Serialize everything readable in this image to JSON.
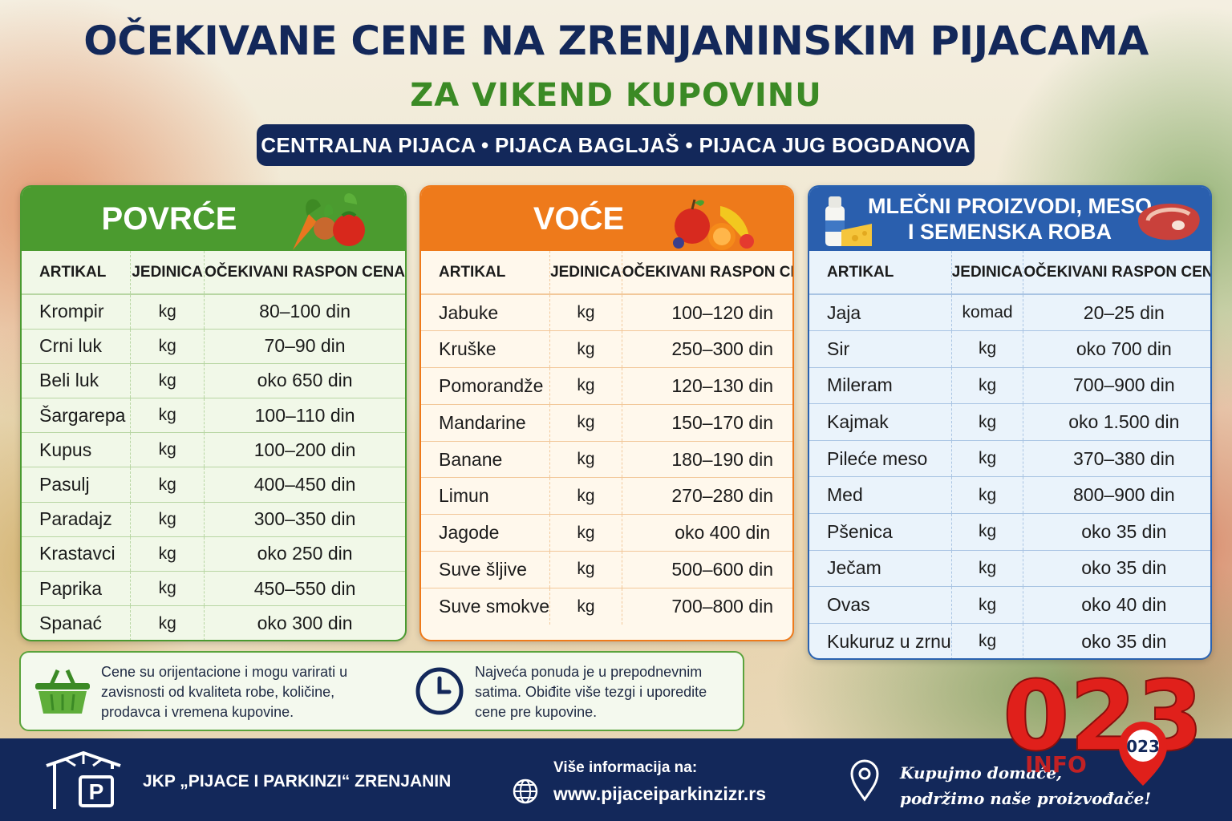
{
  "header": {
    "title": "OČEKIVANE CENE NA ZRENJANINSKIM PIJACAMA",
    "subtitle": "ZA VIKEND KUPOVINU",
    "markets": "CENTRALNA PIJACA • PIJACA BAGLJAŠ • PIJACA JUG BOGDANOVA"
  },
  "columns": {
    "item": "ARTIKAL",
    "unit": "JEDINICA",
    "price": "OČEKIVANI RASPON CENA"
  },
  "vegetables": {
    "title": "POVRĆE",
    "icon": "vegetables-icon",
    "rows": [
      {
        "item": "Krompir",
        "unit": "kg",
        "price": "80–100 din"
      },
      {
        "item": "Crni luk",
        "unit": "kg",
        "price": "70–90 din"
      },
      {
        "item": "Beli luk",
        "unit": "kg",
        "price": "oko 650 din"
      },
      {
        "item": "Šargarepa",
        "unit": "kg",
        "price": "100–110 din"
      },
      {
        "item": "Kupus",
        "unit": "kg",
        "price": "100–200 din"
      },
      {
        "item": "Pasulj",
        "unit": "kg",
        "price": "400–450 din"
      },
      {
        "item": "Paradajz",
        "unit": "kg",
        "price": "300–350 din"
      },
      {
        "item": "Krastavci",
        "unit": "kg",
        "price": "oko 250 din"
      },
      {
        "item": "Paprika",
        "unit": "kg",
        "price": "450–550 din"
      },
      {
        "item": "Spanać",
        "unit": "kg",
        "price": "oko 300 din"
      }
    ]
  },
  "fruit": {
    "title": "VOĆE",
    "icon": "fruit-icon",
    "rows": [
      {
        "item": "Jabuke",
        "unit": "kg",
        "price": "100–120 din"
      },
      {
        "item": "Kruške",
        "unit": "kg",
        "price": "250–300 din"
      },
      {
        "item": "Pomorandže",
        "unit": "kg",
        "price": "120–130 din"
      },
      {
        "item": "Mandarine",
        "unit": "kg",
        "price": "150–170 din"
      },
      {
        "item": "Banane",
        "unit": "kg",
        "price": "180–190 din"
      },
      {
        "item": "Limun",
        "unit": "kg",
        "price": "270–280 din"
      },
      {
        "item": "Jagode",
        "unit": "kg",
        "price": "oko 400 din"
      },
      {
        "item": "Suve šljive",
        "unit": "kg",
        "price": "500–600 din"
      },
      {
        "item": "Suve smokve",
        "unit": "kg",
        "price": "700–800 din"
      }
    ]
  },
  "dairy": {
    "title_line1": "MLEČNI PROIZVODI, MESO",
    "title_line2": "I SEMENSKA ROBA",
    "rows": [
      {
        "item": "Jaja",
        "unit": "komad",
        "price": "20–25 din"
      },
      {
        "item": "Sir",
        "unit": "kg",
        "price": "oko 700 din"
      },
      {
        "item": "Mileram",
        "unit": "kg",
        "price": "700–900 din"
      },
      {
        "item": "Kajmak",
        "unit": "kg",
        "price": "oko 1.500 din"
      },
      {
        "item": "Pileće meso",
        "unit": "kg",
        "price": "370–380 din"
      },
      {
        "item": "Med",
        "unit": "kg",
        "price": "800–900 din"
      },
      {
        "item": "Pšenica",
        "unit": "kg",
        "price": "oko 35 din"
      },
      {
        "item": "Ječam",
        "unit": "kg",
        "price": "oko 35 din"
      },
      {
        "item": "Ovas",
        "unit": "kg",
        "price": "oko 40 din"
      },
      {
        "item": "Kukuruz u zrnu",
        "unit": "kg",
        "price": "oko 35 din"
      }
    ]
  },
  "notes": {
    "left_line1": "Cene su orijentacione i mogu varirati u",
    "left_line2": "zavisnosti od kvaliteta robe, količine,",
    "left_line3": "prodavca i vremena kupovine.",
    "right_line1": "Najveća ponuda je u prepodnevnim",
    "right_line2": "satima. Obiđite više tezgi i uporedite",
    "right_line3": "cene pre kupovine."
  },
  "footer": {
    "org": "JKP „PIJACE I PARKINZI“ ZRENJANIN",
    "info_label": "Više informacija na:",
    "website": "www.pijaceiparkinzizr.rs",
    "slogan_line1": "Kupujmo domaće,",
    "slogan_line2": "podržimo naše proizvođače!"
  },
  "logo": {
    "number": "023",
    "badge": "023",
    "text": "INFO"
  },
  "colors": {
    "navy": "#13285a",
    "green": "#4b9b2f",
    "orange": "#ee7a1b",
    "blue": "#2a5fae",
    "logo_red": "#e0201b"
  }
}
